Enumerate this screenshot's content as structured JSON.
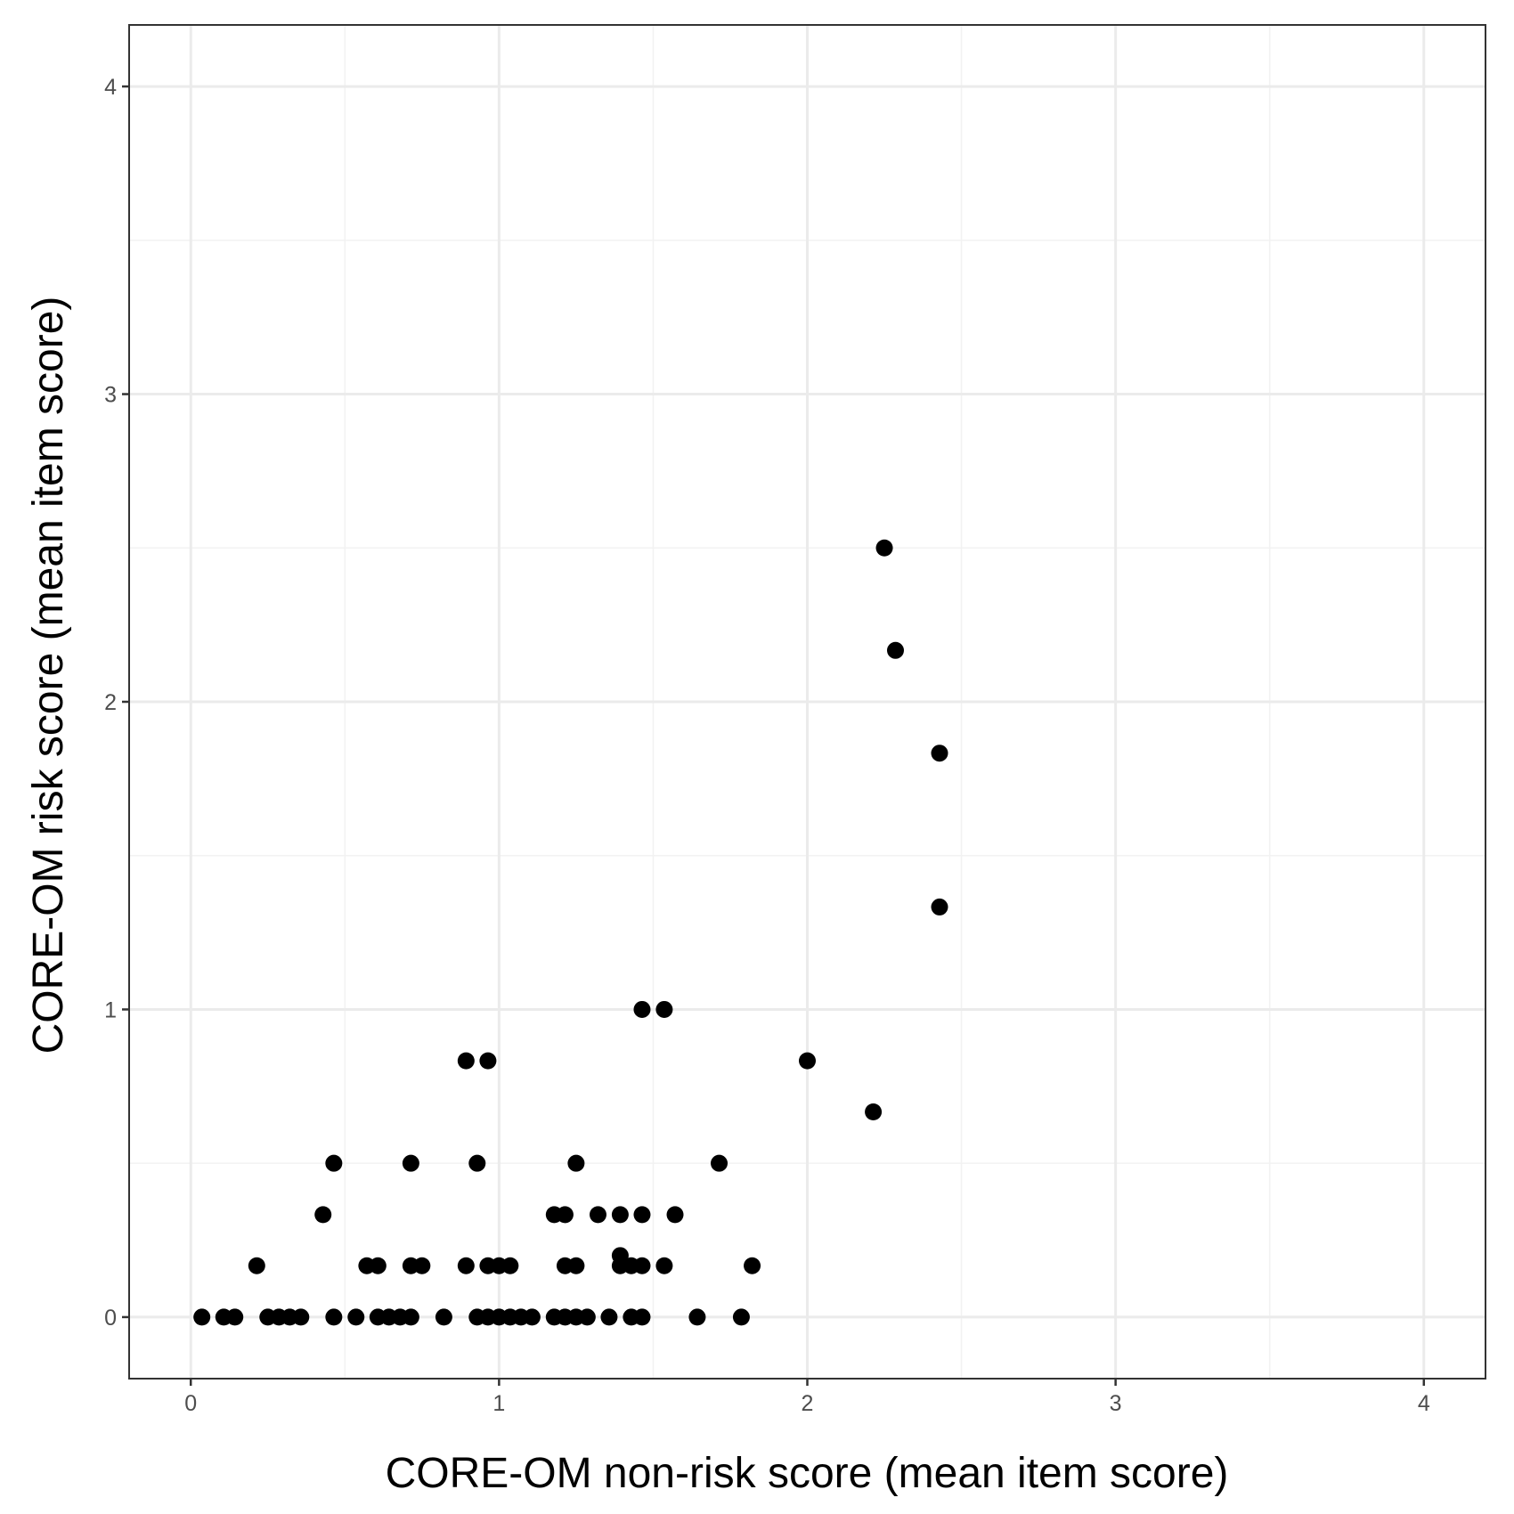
{
  "chart_data": {
    "type": "scatter",
    "xlabel": "CORE-OM non-risk score (mean item score)",
    "ylabel": "CORE-OM risk score (mean item score)",
    "xlim": [
      -0.2,
      4.2
    ],
    "ylim": [
      -0.2,
      4.2
    ],
    "xticks": [
      "0",
      "1",
      "2",
      "3",
      "4"
    ],
    "yticks": [
      "0",
      "1",
      "2",
      "3",
      "4"
    ],
    "grid": true,
    "point_color": "#000000",
    "points": [
      [
        0.036,
        0
      ],
      [
        0.107,
        0
      ],
      [
        0.143,
        0
      ],
      [
        0.25,
        0
      ],
      [
        0.286,
        0
      ],
      [
        0.321,
        0
      ],
      [
        0.357,
        0
      ],
      [
        0.464,
        0
      ],
      [
        0.536,
        0
      ],
      [
        0.607,
        0
      ],
      [
        0.643,
        0
      ],
      [
        0.679,
        0
      ],
      [
        0.714,
        0
      ],
      [
        0.821,
        0
      ],
      [
        0.929,
        0
      ],
      [
        0.964,
        0
      ],
      [
        1.0,
        0
      ],
      [
        1.036,
        0
      ],
      [
        1.071,
        0
      ],
      [
        1.107,
        0
      ],
      [
        1.179,
        0
      ],
      [
        1.214,
        0
      ],
      [
        1.25,
        0
      ],
      [
        1.286,
        0
      ],
      [
        1.357,
        0
      ],
      [
        1.429,
        0
      ],
      [
        1.464,
        0
      ],
      [
        1.643,
        0
      ],
      [
        1.786,
        0
      ],
      [
        0.214,
        0.167
      ],
      [
        0.571,
        0.167
      ],
      [
        0.607,
        0.167
      ],
      [
        0.714,
        0.167
      ],
      [
        0.75,
        0.167
      ],
      [
        0.893,
        0.167
      ],
      [
        0.964,
        0.167
      ],
      [
        1.0,
        0.167
      ],
      [
        1.036,
        0.167
      ],
      [
        1.214,
        0.167
      ],
      [
        1.25,
        0.167
      ],
      [
        1.393,
        0.167
      ],
      [
        1.429,
        0.167
      ],
      [
        1.464,
        0.167
      ],
      [
        1.536,
        0.167
      ],
      [
        1.821,
        0.167
      ],
      [
        1.393,
        0.2
      ],
      [
        0.429,
        0.333
      ],
      [
        1.179,
        0.333
      ],
      [
        1.214,
        0.333
      ],
      [
        1.321,
        0.333
      ],
      [
        1.393,
        0.333
      ],
      [
        1.464,
        0.333
      ],
      [
        1.571,
        0.333
      ],
      [
        0.464,
        0.5
      ],
      [
        0.714,
        0.5
      ],
      [
        0.929,
        0.5
      ],
      [
        1.25,
        0.5
      ],
      [
        1.714,
        0.5
      ],
      [
        2.214,
        0.667
      ],
      [
        0.893,
        0.833
      ],
      [
        0.964,
        0.833
      ],
      [
        2.0,
        0.833
      ],
      [
        1.464,
        1.0
      ],
      [
        1.536,
        1.0
      ],
      [
        2.429,
        1.333
      ],
      [
        2.429,
        1.833
      ],
      [
        2.286,
        2.167
      ],
      [
        2.25,
        2.5
      ]
    ]
  }
}
